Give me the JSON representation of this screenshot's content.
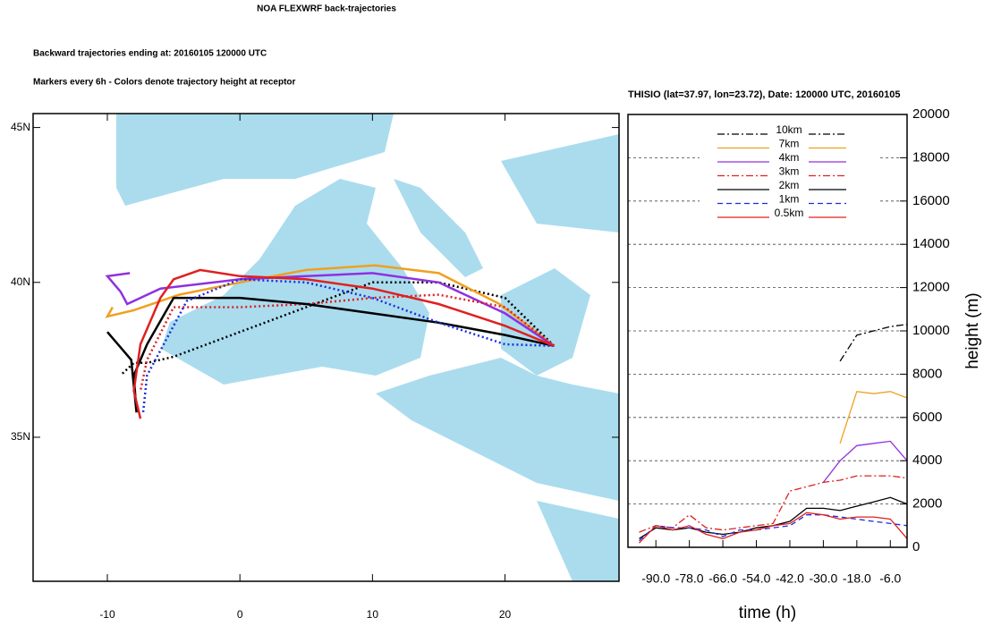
{
  "header": {
    "title": "NOA FLEXWRF back-trajectories",
    "lines": [
      "Backward trajectories ending at: 20160105  120000 UTC",
      "Markers every 6h - Colors denote trajectory height at receptor"
    ]
  },
  "chart_data": [
    {
      "type": "map",
      "xlim": [
        -15.6,
        28.6
      ],
      "ylim": [
        30.35,
        45.45
      ],
      "xticks": [
        -10,
        0,
        10,
        20
      ],
      "yticks": [
        {
          "value": 45,
          "label": "45N"
        },
        {
          "value": 40,
          "label": "40N"
        },
        {
          "value": 35,
          "label": "35N"
        }
      ],
      "series": [
        {
          "color": "#000000",
          "style": "dotted",
          "x": [
            23.7,
            20,
            15,
            10,
            5,
            0,
            -5,
            -7,
            -8,
            -9
          ],
          "values": [
            37.95,
            39.5,
            40,
            40,
            39.2,
            38.4,
            37.6,
            37.4,
            37.4,
            37
          ]
        },
        {
          "color": "#f0a020",
          "style": "solid",
          "x": [
            23.7,
            19.6,
            15,
            10.2,
            5,
            0,
            -4.6,
            -8,
            -10,
            -9.6
          ],
          "values": [
            37.95,
            39.3,
            40.3,
            40.55,
            40.4,
            40,
            39.6,
            39.1,
            38.9,
            39.2
          ]
        },
        {
          "color": "#9030e0",
          "style": "solid",
          "x": [
            23.7,
            20,
            15,
            10,
            5,
            0,
            -6,
            -8.5,
            -9,
            -10,
            -8.3
          ],
          "values": [
            37.95,
            39,
            40,
            40.3,
            40.2,
            40.1,
            39.8,
            39.3,
            39.7,
            40.2,
            40.3
          ]
        },
        {
          "color": "#e02020",
          "style": "dotted",
          "x": [
            23.7,
            20,
            15,
            10,
            5,
            0,
            -5,
            -7,
            -7.5
          ],
          "values": [
            37.95,
            39.2,
            39.6,
            39.5,
            39.3,
            39.2,
            39.2,
            37.5,
            36.5
          ]
        },
        {
          "color": "#000000",
          "style": "solid",
          "x": [
            23.7,
            20,
            15,
            10,
            5,
            0,
            -5,
            -7,
            -8,
            -7.8,
            -8.2,
            -10
          ],
          "values": [
            37.95,
            38.3,
            38.7,
            39,
            39.3,
            39.5,
            39.5,
            38,
            37,
            35.8,
            37.5,
            38.4
          ]
        },
        {
          "color": "#1a2ee0",
          "style": "dotted",
          "x": [
            23.7,
            20,
            15,
            10,
            5,
            0,
            -4,
            -5.5,
            -7,
            -7.3
          ],
          "values": [
            37.95,
            38,
            38.7,
            39.5,
            40,
            40.1,
            39.4,
            38.2,
            37,
            35.8
          ]
        },
        {
          "color": "#e02020",
          "style": "solid",
          "x": [
            23.7,
            20,
            15,
            10,
            5,
            0,
            -3,
            -5,
            -6,
            -7.5,
            -8,
            -7.5
          ],
          "values": [
            37.95,
            38.6,
            39.3,
            39.8,
            40.1,
            40.2,
            40.4,
            40.1,
            39.5,
            38,
            36.5,
            35.6
          ]
        }
      ]
    },
    {
      "type": "line",
      "title": "THISIO (lat=37.97,  lon=23.72), Date: 120000 UTC, 20160105",
      "xlabel": "time (h)",
      "ylabel": "height (m)",
      "xlim": [
        -100,
        0
      ],
      "ylim": [
        0,
        20000
      ],
      "xticks": [
        {
          "value": -90,
          "label": "-90.0"
        },
        {
          "value": -78,
          "label": "-78.0"
        },
        {
          "value": -66,
          "label": "-66.0"
        },
        {
          "value": -54,
          "label": "-54.0"
        },
        {
          "value": -42,
          "label": "-42.0"
        },
        {
          "value": -30,
          "label": "-30.0"
        },
        {
          "value": -18,
          "label": "-18.0"
        },
        {
          "value": -6,
          "label": "-6.0"
        }
      ],
      "yticks": [
        0,
        2000,
        4000,
        6000,
        8000,
        10000,
        12000,
        14000,
        16000,
        18000,
        20000
      ],
      "grid": true,
      "legend": "upper center",
      "x": [
        -96,
        -90,
        -84,
        -78,
        -72,
        -66,
        -60,
        -54,
        -48,
        -42,
        -36,
        -30,
        -24,
        -18,
        -12,
        -6,
        0
      ],
      "series": [
        {
          "name": "10km",
          "color": "#000000",
          "style": "dash-dot",
          "values": [
            null,
            null,
            null,
            null,
            null,
            null,
            null,
            null,
            null,
            null,
            null,
            null,
            8600,
            9800,
            10000,
            10200,
            10300
          ]
        },
        {
          "name": "7km",
          "color": "#f0a020",
          "style": "solid",
          "values": [
            null,
            null,
            null,
            null,
            null,
            null,
            null,
            null,
            null,
            null,
            null,
            null,
            4800,
            7200,
            7100,
            7200,
            6900
          ]
        },
        {
          "name": "4km",
          "color": "#9030e0",
          "style": "solid",
          "values": [
            null,
            null,
            null,
            null,
            null,
            null,
            null,
            null,
            null,
            null,
            null,
            3000,
            4000,
            4700,
            4800,
            4900,
            4000
          ]
        },
        {
          "name": "3km",
          "color": "#e02020",
          "style": "dash-dot",
          "values": [
            700,
            1000,
            900,
            1500,
            900,
            800,
            900,
            1000,
            1100,
            2600,
            2800,
            3000,
            3100,
            3300,
            3300,
            3300,
            3200
          ]
        },
        {
          "name": "2km",
          "color": "#000000",
          "style": "solid",
          "values": [
            400,
            900,
            800,
            900,
            700,
            600,
            700,
            900,
            1000,
            1200,
            1800,
            1800,
            1700,
            1900,
            2100,
            2300,
            2000
          ]
        },
        {
          "name": "1km",
          "color": "#1a2ee0",
          "style": "dashed",
          "values": [
            300,
            1000,
            900,
            900,
            800,
            500,
            800,
            800,
            900,
            1000,
            1500,
            1500,
            1400,
            1300,
            1200,
            1100,
            1000
          ]
        },
        {
          "name": "0.5km",
          "color": "#e02020",
          "style": "solid",
          "values": [
            200,
            1000,
            800,
            1000,
            600,
            400,
            700,
            800,
            1000,
            1100,
            1600,
            1500,
            1300,
            1400,
            1400,
            1300,
            400
          ]
        }
      ]
    }
  ]
}
